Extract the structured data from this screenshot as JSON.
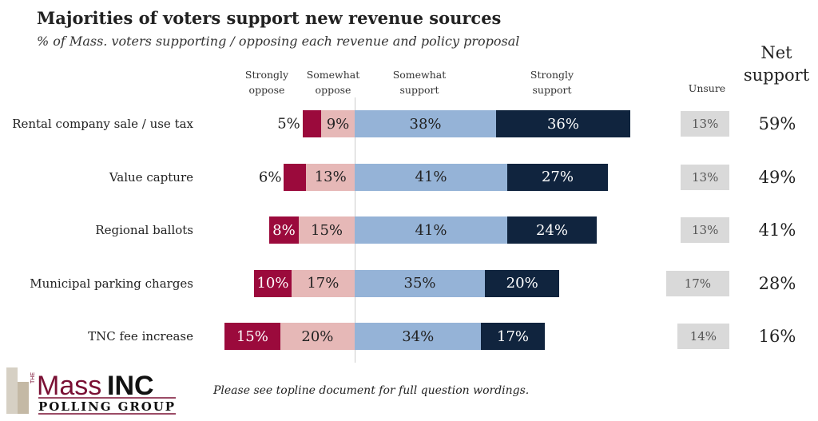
{
  "chart_data": {
    "type": "bar",
    "orientation": "horizontal",
    "stacked": "diverging",
    "title": "Majorities of voters support new revenue sources",
    "subtitle": "% of Mass. voters supporting / opposing each revenue and policy proposal",
    "categories": [
      "Rental company sale / use tax",
      "Value capture",
      "Regional ballots",
      "Municipal parking charges",
      "TNC fee increase"
    ],
    "series": [
      {
        "name": "Strongly oppose",
        "name_lines": [
          "Strongly",
          "oppose"
        ],
        "color": "#9b0a3c",
        "values": [
          5,
          6,
          8,
          10,
          15
        ]
      },
      {
        "name": "Somewhat oppose",
        "name_lines": [
          "Somewhat",
          "oppose"
        ],
        "color": "#e6b8b7",
        "values": [
          9,
          13,
          15,
          17,
          20
        ]
      },
      {
        "name": "Somewhat support",
        "name_lines": [
          "Somewhat",
          "support"
        ],
        "color": "#95b3d7",
        "values": [
          38,
          41,
          41,
          35,
          34
        ]
      },
      {
        "name": "Strongly support",
        "name_lines": [
          "Strongly",
          "support"
        ],
        "color": "#10243e",
        "values": [
          36,
          27,
          24,
          20,
          17
        ]
      }
    ],
    "unsure": {
      "name": "Unsure",
      "color": "#d9d9d9",
      "values": [
        13,
        13,
        13,
        17,
        14
      ]
    },
    "net_support": {
      "name_lines": [
        "Net",
        "support"
      ],
      "values": [
        59,
        49,
        41,
        28,
        16
      ]
    },
    "value_suffix": "%",
    "grid": false
  },
  "footnote": "Please see topline document for full question wordings.",
  "logo": {
    "the": "THE",
    "mass": "Mass",
    "inc": "INC",
    "group": "POLLING GROUP"
  }
}
